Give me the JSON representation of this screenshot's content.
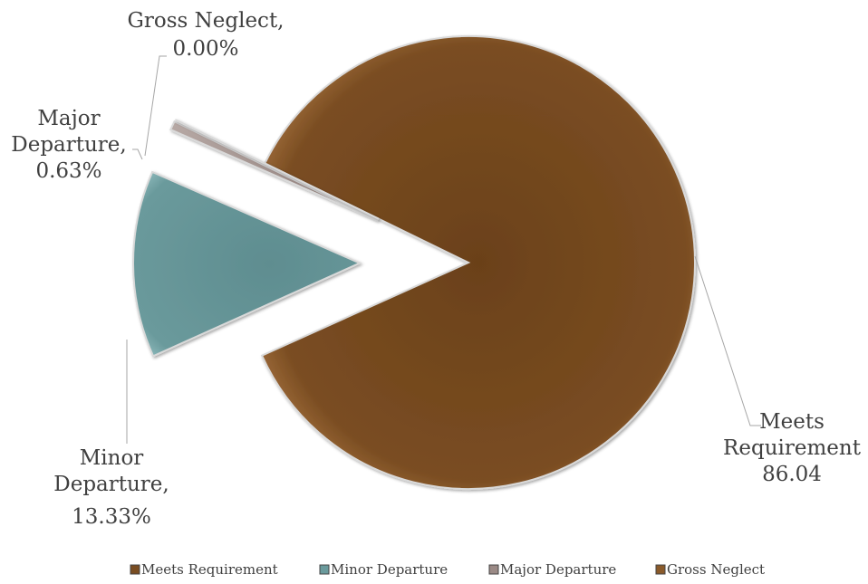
{
  "chart_data": {
    "type": "pie",
    "categories": [
      "Meets Requirement",
      "Minor Departure",
      "Major Departure",
      "Gross Neglect"
    ],
    "values": [
      86.04,
      13.33,
      0.63,
      0.0
    ],
    "data_labels": [
      [
        "Meets",
        "Requirement",
        "86.04"
      ],
      [
        "Minor",
        "Departure,",
        "13.33%"
      ],
      [
        "Major",
        "Departure,",
        "0.63%"
      ],
      [
        "Gross Neglect,",
        "0.00%"
      ]
    ],
    "colors": [
      "#7a4d22",
      "#6a9a9c",
      "#9b8a86",
      "#8a5a2a"
    ],
    "legend_position": "bottom",
    "exploded": true
  }
}
